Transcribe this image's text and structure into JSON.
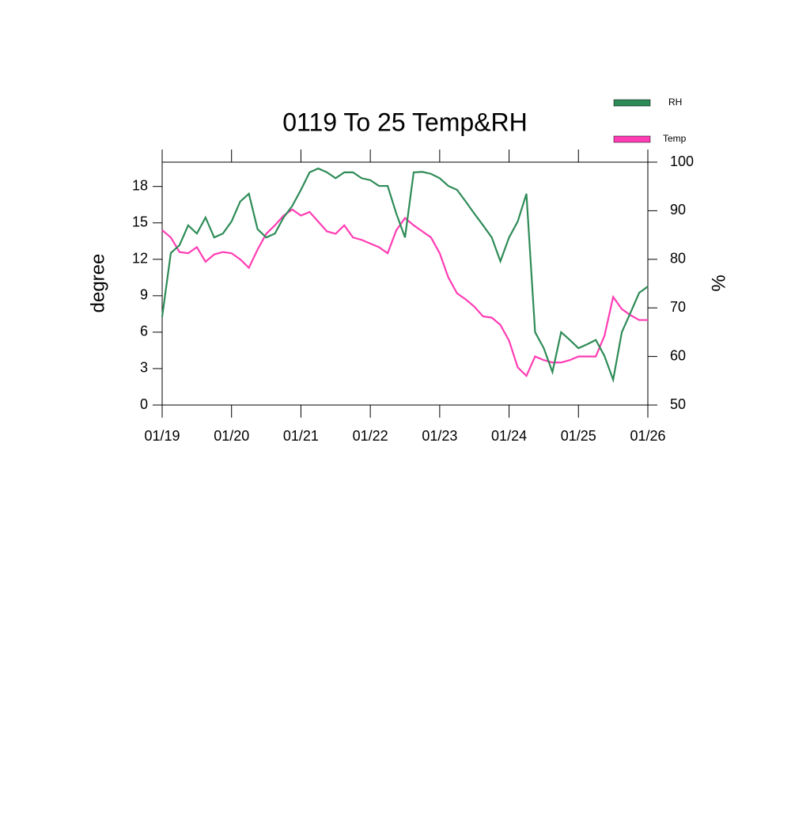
{
  "chart_data": {
    "type": "line",
    "title": "0119 To 25 Temp&RH",
    "ylabel": "degree",
    "y2label": "%",
    "x": [
      0,
      0.125,
      0.25,
      0.375,
      0.5,
      0.625,
      0.75,
      0.875,
      1,
      1.125,
      1.25,
      1.375,
      1.5,
      1.625,
      1.75,
      1.875,
      2,
      2.125,
      2.25,
      2.375,
      2.5,
      2.625,
      2.75,
      2.875,
      3,
      3.125,
      3.25,
      3.375,
      3.5,
      3.625,
      3.75,
      3.875,
      4,
      4.125,
      4.25,
      4.375,
      4.5,
      4.625,
      4.75,
      4.875,
      5,
      5.125,
      5.25,
      5.375,
      5.5,
      5.625,
      5.75,
      5.875,
      6,
      6.125,
      6.25,
      6.375,
      6.5,
      6.625,
      6.75,
      6.875,
      7
    ],
    "series": [
      {
        "name": "Temp",
        "color": "#ff3cb4",
        "values": [
          14.4,
          13.8,
          12.6,
          12.5,
          13,
          11.8,
          12.4,
          12.6,
          12.5,
          12,
          11.3,
          12.8,
          14.1,
          14.8,
          15.6,
          16.1,
          15.6,
          15.9,
          15.1,
          14.3,
          14.1,
          14.8,
          13.8,
          13.6,
          13.3,
          13,
          12.5,
          14.4,
          15.4,
          14.8,
          14.3,
          13.8,
          12.5,
          10.5,
          9.2,
          8.7,
          8.1,
          7.3,
          7.2,
          6.6,
          5.3,
          3.1,
          2.4,
          4.0,
          3.7,
          3.5,
          3.5,
          3.7,
          4.0,
          4.0,
          4.0,
          5.7,
          8.9,
          7.9,
          7.4,
          7,
          7
        ]
      },
      {
        "name": "RH",
        "color": "#2e8b57",
        "axis": "y2",
        "values": [
          68.2,
          81.3,
          82.9,
          87,
          85.3,
          88.6,
          84.5,
          85.3,
          87.8,
          91.9,
          93.5,
          86.2,
          84.5,
          85.3,
          88.6,
          91,
          94.3,
          97.9,
          98.7,
          97.9,
          96.7,
          97.9,
          97.9,
          96.7,
          96.3,
          95.1,
          95.1,
          89.4,
          84.5,
          97.9,
          98,
          97.6,
          96.7,
          95.1,
          94.3,
          91.9,
          89.4,
          87,
          84.5,
          79.6,
          84.5,
          87.8,
          93.5,
          65,
          61.7,
          56.8,
          65,
          63.4,
          61.7,
          62.5,
          63.4,
          60.1,
          55.2,
          65,
          69,
          73.1,
          74.4
        ]
      }
    ],
    "xlim": [
      0,
      7
    ],
    "xticks": [
      {
        "value": 0,
        "label": "01/19"
      },
      {
        "value": 1,
        "label": "01/20"
      },
      {
        "value": 2,
        "label": "01/21"
      },
      {
        "value": 3,
        "label": "01/22"
      },
      {
        "value": 4,
        "label": "01/23"
      },
      {
        "value": 5,
        "label": "01/24"
      },
      {
        "value": 6,
        "label": "01/25"
      },
      {
        "value": 7,
        "label": "01/26"
      }
    ],
    "ylim": [
      0,
      20
    ],
    "yticks": [
      0,
      3,
      6,
      9,
      12,
      15,
      18
    ],
    "y2lim": [
      50,
      100
    ],
    "y2ticks": [
      50,
      60,
      70,
      80,
      90,
      100
    ]
  }
}
